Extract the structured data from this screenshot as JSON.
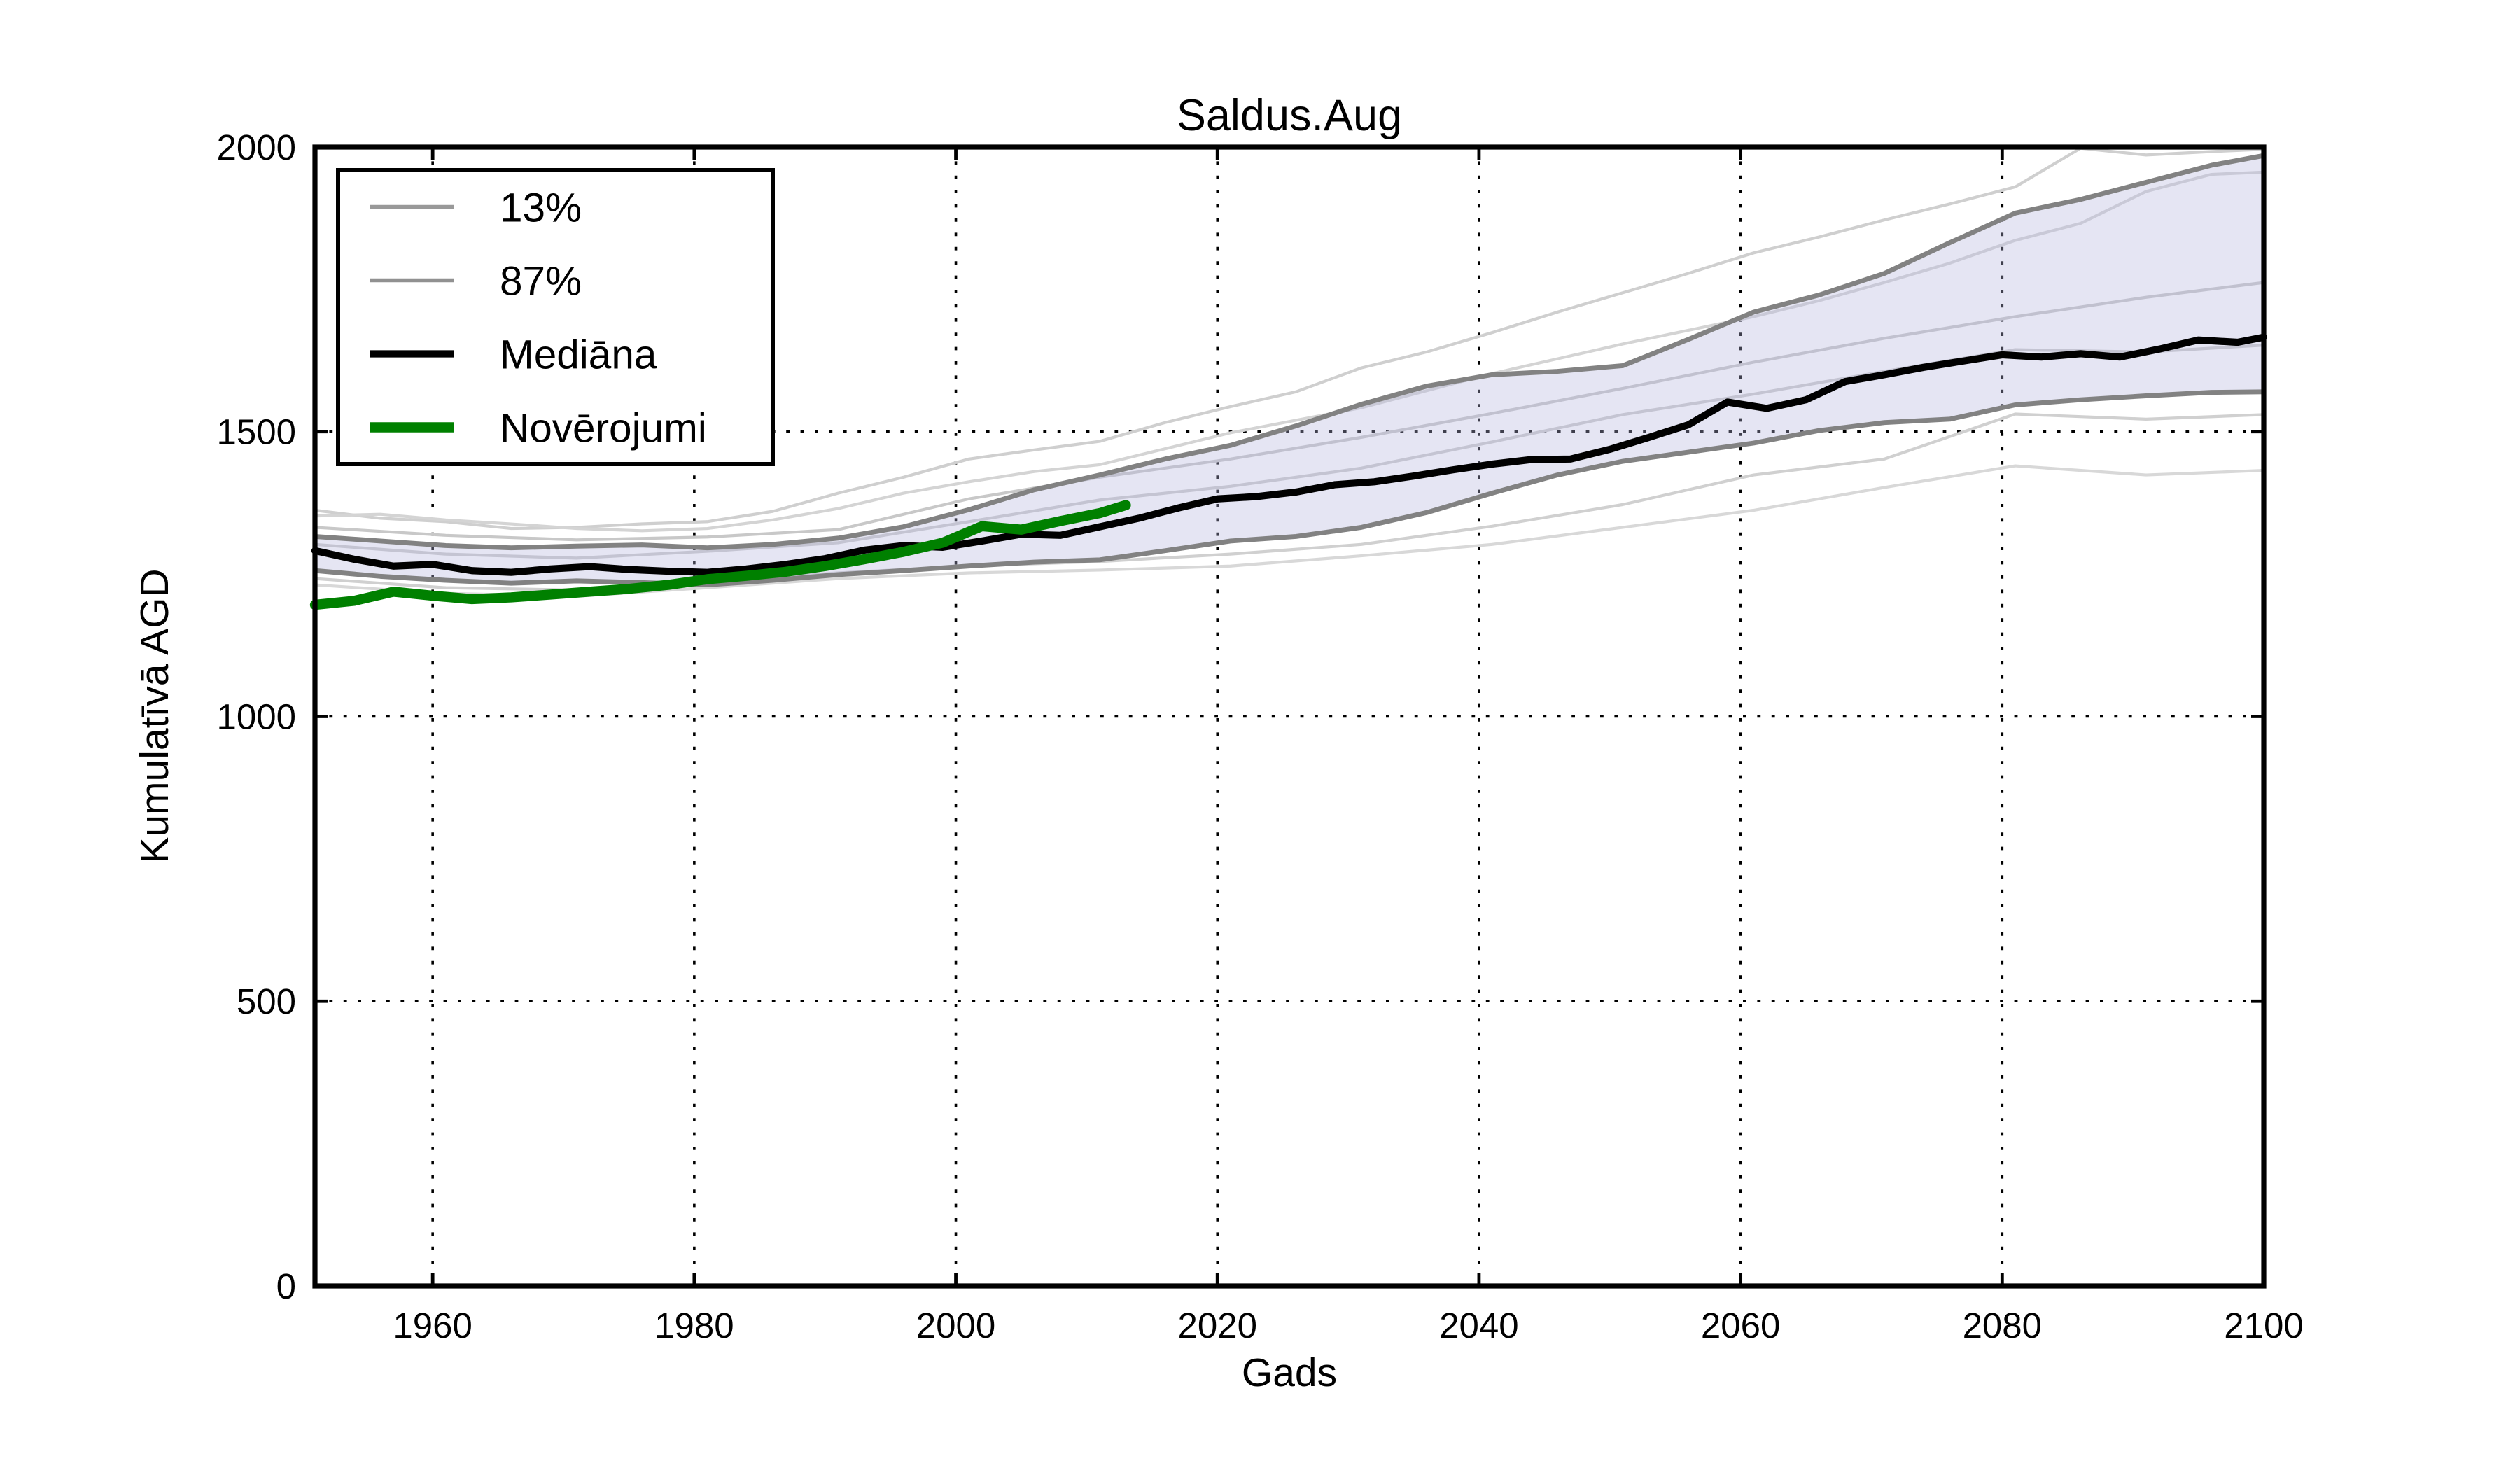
{
  "page": {
    "background": "#ffffff"
  },
  "chart_data": {
    "type": "line",
    "title": "Saldus.Aug",
    "xlabel": "Gads",
    "ylabel": "Kumulatīvā AGD",
    "xlim": [
      1951,
      2100
    ],
    "ylim": [
      0,
      2000
    ],
    "xticks": [
      1960,
      1980,
      2000,
      2020,
      2040,
      2060,
      2080,
      2100
    ],
    "yticks": [
      0,
      500,
      1000,
      1500,
      2000
    ],
    "grid": true,
    "grid_style": "dotted",
    "grid_color": "#000000",
    "legend_position": "upper-left",
    "legend": [
      {
        "label": "13%",
        "color": "#999999",
        "width": 1.8
      },
      {
        "label": "87%",
        "color": "#919191",
        "width": 1.8
      },
      {
        "label": "Mediāna",
        "color": "#000000",
        "width": 3.4
      },
      {
        "label": "Novērojumi",
        "color": "#008000",
        "width": 4.8
      }
    ],
    "band": {
      "name": "13-87-percentile-band",
      "between": [
        "87%",
        "13%"
      ],
      "fill": "#b4b4dc",
      "opacity": 0.35
    },
    "series": [
      {
        "name": "ensemble-1",
        "color": "#cfcfcf",
        "width": 1.4,
        "x": [
          1951,
          1956,
          1961,
          1966,
          1971,
          1976,
          1981,
          1986,
          1991,
          1996,
          2001,
          2006,
          2011,
          2016,
          2021,
          2026,
          2031,
          2036,
          2041,
          2046,
          2051,
          2056,
          2061,
          2066,
          2071,
          2076,
          2081,
          2086,
          2091,
          2096,
          2100
        ],
        "y": [
          1362,
          1348,
          1342,
          1330,
          1332,
          1338,
          1342,
          1360,
          1392,
          1420,
          1452,
          1468,
          1483,
          1516,
          1544,
          1570,
          1612,
          1640,
          1674,
          1710,
          1744,
          1778,
          1814,
          1842,
          1872,
          1900,
          1930,
          1998,
          1986,
          1992,
          1996
        ]
      },
      {
        "name": "ensemble-2",
        "color": "#d4d4d4",
        "width": 1.4,
        "x": [
          1951,
          1956,
          1961,
          1966,
          1971,
          1976,
          1981,
          1986,
          1991,
          1996,
          2001,
          2006,
          2011,
          2016,
          2021,
          2026,
          2031,
          2036,
          2041,
          2046,
          2051,
          2056,
          2061,
          2066,
          2071,
          2076,
          2081,
          2086,
          2091,
          2096,
          2100
        ],
        "y": [
          1352,
          1355,
          1345,
          1338,
          1330,
          1326,
          1330,
          1345,
          1365,
          1392,
          1412,
          1430,
          1442,
          1470,
          1498,
          1520,
          1542,
          1572,
          1602,
          1628,
          1654,
          1678,
          1702,
          1730,
          1762,
          1796,
          1836,
          1866,
          1922,
          1952,
          1956
        ]
      },
      {
        "name": "ensemble-3",
        "color": "#c8c8c8",
        "width": 1.4,
        "x": [
          1951,
          1961,
          1971,
          1981,
          1991,
          2001,
          2011,
          2021,
          2031,
          2041,
          2051,
          2061,
          2071,
          2081,
          2091,
          2100
        ],
        "y": [
          1332,
          1318,
          1310,
          1315,
          1328,
          1382,
          1420,
          1452,
          1490,
          1532,
          1576,
          1622,
          1664,
          1702,
          1736,
          1762
        ]
      },
      {
        "name": "ensemble-4",
        "color": "#cccccc",
        "width": 1.4,
        "x": [
          1951,
          1961,
          1971,
          1981,
          1991,
          2001,
          2011,
          2021,
          2031,
          2041,
          2051,
          2061,
          2071,
          2081,
          2091,
          2100
        ],
        "y": [
          1302,
          1285,
          1278,
          1290,
          1305,
          1342,
          1380,
          1404,
          1436,
          1482,
          1530,
          1566,
          1606,
          1644,
          1640,
          1652
        ]
      },
      {
        "name": "ensemble-5",
        "color": "#d0d0d0",
        "width": 1.4,
        "x": [
          1951,
          1961,
          1971,
          1981,
          1991,
          2001,
          2011,
          2021,
          2031,
          2041,
          2051,
          2061,
          2071,
          2081,
          2091,
          2100
        ],
        "y": [
          1242,
          1226,
          1222,
          1236,
          1252,
          1264,
          1272,
          1285,
          1302,
          1334,
          1372,
          1424,
          1452,
          1531,
          1522,
          1530
        ]
      },
      {
        "name": "ensemble-6",
        "color": "#d8d8d8",
        "width": 1.4,
        "x": [
          1951,
          1961,
          1971,
          1981,
          1991,
          2001,
          2011,
          2021,
          2031,
          2041,
          2051,
          2061,
          2071,
          2081,
          2091,
          2100
        ],
        "y": [
          1231,
          1216,
          1211,
          1226,
          1242,
          1252,
          1257,
          1264,
          1282,
          1302,
          1332,
          1362,
          1402,
          1440,
          1424,
          1432
        ]
      },
      {
        "name": "87%",
        "color": "#828282",
        "width": 2.3,
        "x": [
          1951,
          1956,
          1961,
          1966,
          1971,
          1976,
          1981,
          1986,
          1991,
          1996,
          2001,
          2006,
          2011,
          2016,
          2021,
          2026,
          2031,
          2036,
          2041,
          2046,
          2051,
          2056,
          2061,
          2066,
          2071,
          2076,
          2081,
          2086,
          2091,
          2096,
          2100
        ],
        "y": [
          1316,
          1308,
          1300,
          1296,
          1299,
          1301,
          1296,
          1302,
          1313,
          1333,
          1363,
          1398,
          1424,
          1452,
          1476,
          1510,
          1548,
          1580,
          1600,
          1606,
          1616,
          1662,
          1710,
          1740,
          1778,
          1832,
          1884,
          1908,
          1938,
          1968,
          1985
        ]
      },
      {
        "name": "13%",
        "color": "#828282",
        "width": 2.3,
        "x": [
          1951,
          1956,
          1961,
          1966,
          1971,
          1976,
          1981,
          1986,
          1991,
          1996,
          2001,
          2006,
          2011,
          2016,
          2021,
          2026,
          2031,
          2036,
          2041,
          2046,
          2051,
          2056,
          2061,
          2066,
          2071,
          2076,
          2081,
          2086,
          2091,
          2096,
          2100
        ],
        "y": [
          1256,
          1246,
          1239,
          1234,
          1238,
          1235,
          1231,
          1239,
          1249,
          1256,
          1264,
          1271,
          1275,
          1291,
          1308,
          1316,
          1332,
          1358,
          1392,
          1424,
          1448,
          1464,
          1480,
          1502,
          1516,
          1522,
          1547,
          1556,
          1563,
          1569,
          1570
        ]
      },
      {
        "name": "Mediāna",
        "color": "#000000",
        "width": 3.4,
        "x": [
          1951,
          1954,
          1957,
          1960,
          1963,
          1966,
          1969,
          1972,
          1975,
          1978,
          1981,
          1984,
          1987,
          1990,
          1993,
          1996,
          1999,
          2002,
          2005,
          2008,
          2011,
          2014,
          2017,
          2020,
          2023,
          2026,
          2029,
          2032,
          2035,
          2038,
          2041,
          2044,
          2047,
          2050,
          2053,
          2056,
          2059,
          2062,
          2065,
          2068,
          2071,
          2074,
          2077,
          2080,
          2083,
          2086,
          2089,
          2092,
          2095,
          2098,
          2100
        ],
        "y": [
          1291,
          1276,
          1264,
          1267,
          1256,
          1253,
          1259,
          1263,
          1258,
          1255,
          1253,
          1259,
          1267,
          1277,
          1292,
          1300,
          1297,
          1308,
          1320,
          1318,
          1333,
          1348,
          1366,
          1382,
          1386,
          1394,
          1407,
          1412,
          1422,
          1433,
          1443,
          1451,
          1452,
          1469,
          1490,
          1512,
          1552,
          1541,
          1556,
          1588,
          1600,
          1613,
          1624,
          1635,
          1631,
          1637,
          1631,
          1645,
          1661,
          1657,
          1666
        ]
      },
      {
        "name": "Novērojumi",
        "color": "#008000",
        "width": 4.8,
        "x": [
          1951,
          1954,
          1957,
          1960,
          1963,
          1966,
          1969,
          1972,
          1975,
          1978,
          1981,
          1984,
          1987,
          1990,
          1993,
          1996,
          1999,
          2002,
          2005,
          2008,
          2011,
          2013
        ],
        "y": [
          1196,
          1203,
          1219,
          1212,
          1206,
          1209,
          1214,
          1219,
          1224,
          1231,
          1241,
          1247,
          1254,
          1264,
          1276,
          1289,
          1305,
          1334,
          1328,
          1343,
          1357,
          1371
        ]
      }
    ]
  }
}
